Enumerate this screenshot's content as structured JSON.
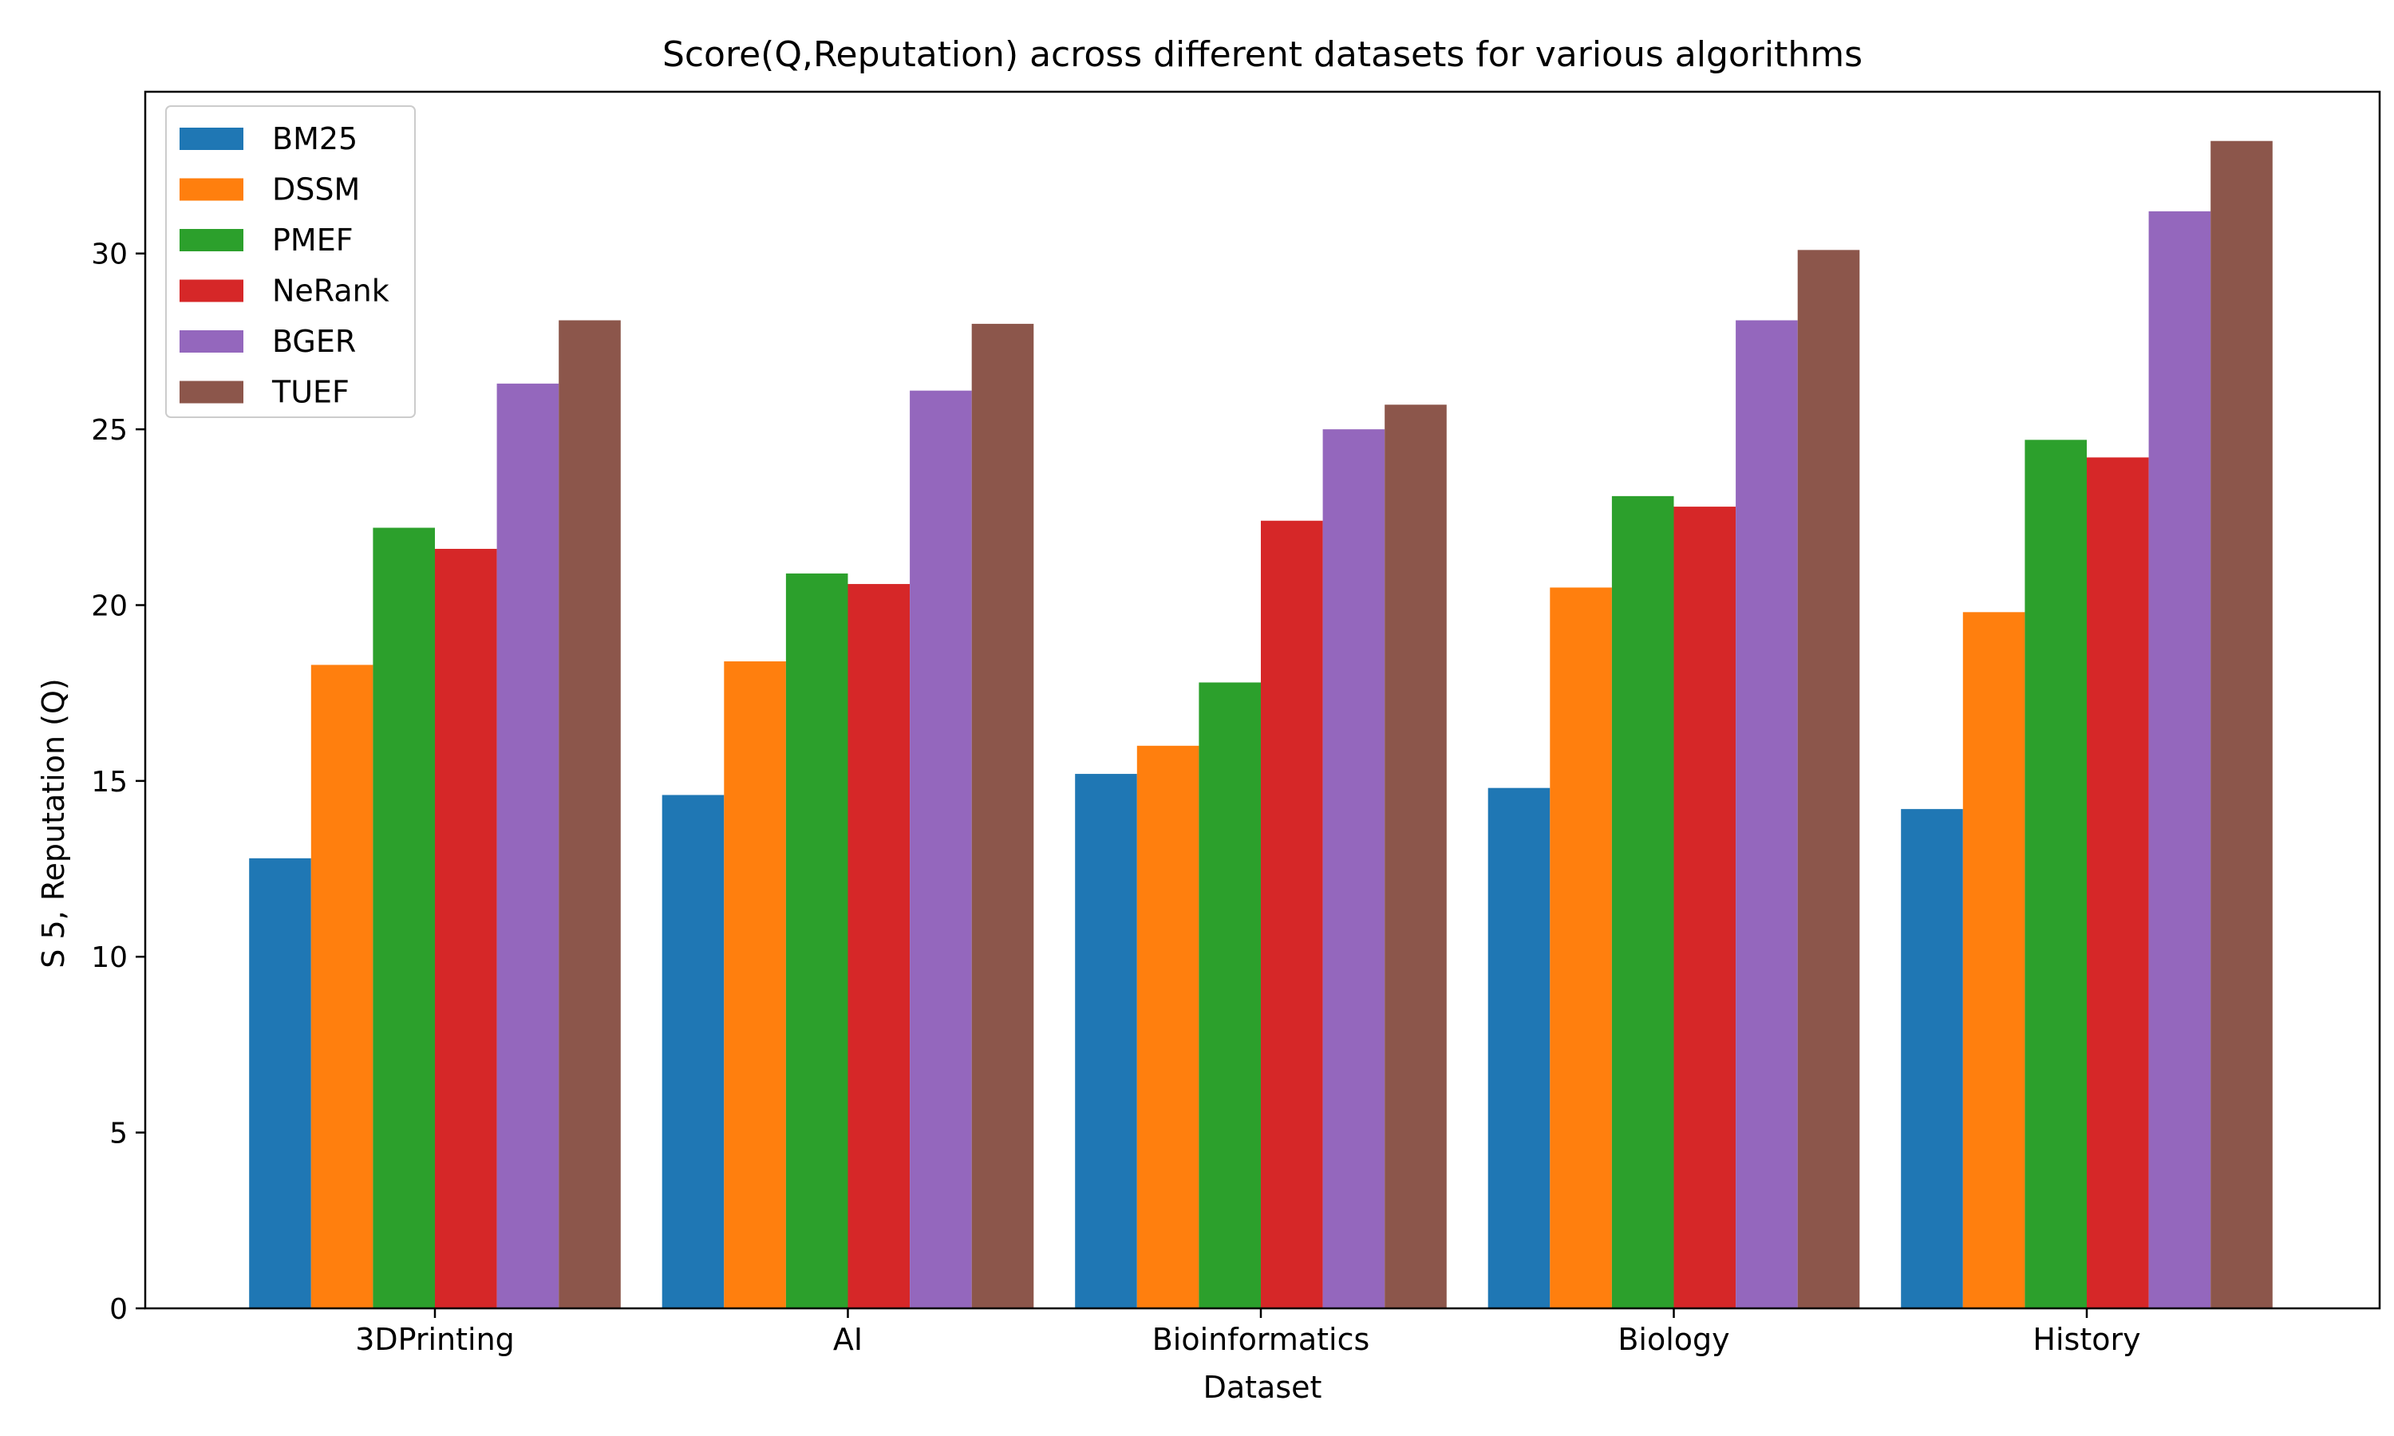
{
  "chart_data": {
    "type": "bar",
    "title": "Score(Q,Reputation) across different datasets for various algorithms",
    "xlabel": "Dataset",
    "ylabel": "S 5, Reputation (Q)",
    "categories": [
      "3DPrinting",
      "AI",
      "Bioinformatics",
      "Biology",
      "History"
    ],
    "ylim": [
      0,
      34.6
    ],
    "yticks": [
      0,
      5,
      10,
      15,
      20,
      25,
      30
    ],
    "grid": false,
    "legend_position": "top-left",
    "series": [
      {
        "name": "BM25",
        "color": "#1f77b4",
        "values": [
          12.8,
          14.6,
          15.2,
          14.8,
          14.2
        ]
      },
      {
        "name": "DSSM",
        "color": "#ff7f0e",
        "values": [
          18.3,
          18.4,
          16.0,
          20.5,
          19.8
        ]
      },
      {
        "name": "PMEF",
        "color": "#2ca02c",
        "values": [
          22.2,
          20.9,
          17.8,
          23.1,
          24.7
        ]
      },
      {
        "name": "NeRank",
        "color": "#d62728",
        "values": [
          21.6,
          20.6,
          22.4,
          22.8,
          24.2
        ]
      },
      {
        "name": "BGER",
        "color": "#9467bd",
        "values": [
          26.3,
          26.1,
          25.0,
          28.1,
          31.2
        ]
      },
      {
        "name": "TUEF",
        "color": "#8c564b",
        "values": [
          28.1,
          28.0,
          25.7,
          30.1,
          33.2
        ]
      }
    ]
  }
}
